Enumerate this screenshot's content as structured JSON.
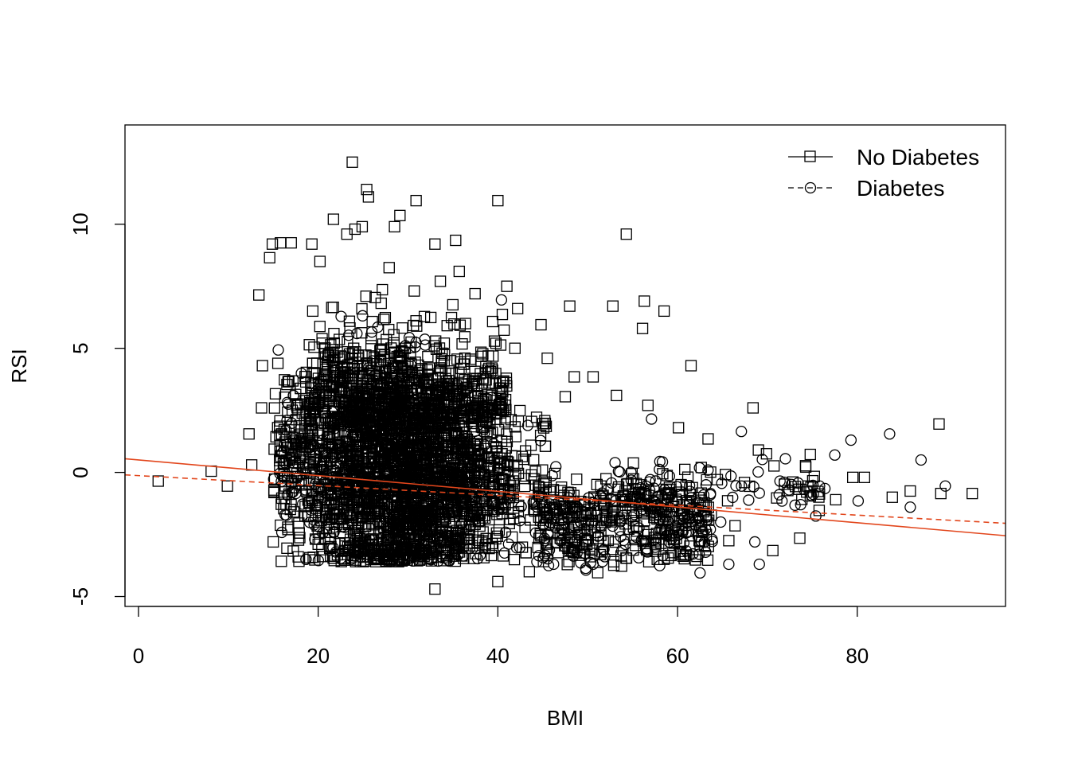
{
  "chart_data": {
    "type": "scatter",
    "title": "",
    "xlabel": "BMI",
    "ylabel": "RSI",
    "xlim": [
      -1.5,
      96.5
    ],
    "ylim": [
      -5.4,
      14.0
    ],
    "x_ticks": [
      0,
      20,
      40,
      60,
      80
    ],
    "y_ticks": [
      -5,
      0,
      5,
      10
    ],
    "grid": false,
    "legend": {
      "position": "top-right",
      "entries": [
        {
          "label": "No Diabetes",
          "marker": "square",
          "line": "solid"
        },
        {
          "label": "Diabetes",
          "marker": "circle",
          "line": "dashed"
        }
      ]
    },
    "series": [
      {
        "name": "No Diabetes",
        "marker": "square",
        "outliers": [
          [
            2.2,
            -0.35
          ],
          [
            8.1,
            0.05
          ],
          [
            9.9,
            -0.55
          ],
          [
            12.3,
            1.55
          ],
          [
            12.6,
            0.3
          ],
          [
            13.4,
            7.15
          ],
          [
            13.8,
            4.3
          ],
          [
            13.7,
            2.6
          ],
          [
            14.6,
            8.65
          ],
          [
            14.9,
            9.2
          ],
          [
            15.8,
            9.25
          ],
          [
            17.0,
            9.25
          ],
          [
            19.3,
            9.2
          ],
          [
            19.4,
            6.5
          ],
          [
            20.2,
            8.5
          ],
          [
            21.7,
            10.2
          ],
          [
            23.2,
            9.6
          ],
          [
            23.8,
            12.5
          ],
          [
            24.1,
            9.8
          ],
          [
            24.9,
            9.9
          ],
          [
            25.4,
            11.4
          ],
          [
            25.6,
            11.1
          ],
          [
            28.5,
            9.9
          ],
          [
            29.1,
            10.35
          ],
          [
            30.9,
            10.95
          ],
          [
            33.0,
            9.2
          ],
          [
            35.3,
            9.35
          ],
          [
            35.7,
            8.1
          ],
          [
            27.9,
            8.25
          ],
          [
            33.6,
            7.7
          ],
          [
            40.0,
            10.95
          ],
          [
            41.0,
            7.5
          ],
          [
            42.2,
            6.6
          ],
          [
            44.8,
            5.95
          ],
          [
            48.0,
            6.7
          ],
          [
            52.8,
            6.7
          ],
          [
            54.3,
            9.6
          ],
          [
            56.3,
            6.9
          ],
          [
            56.1,
            5.8
          ],
          [
            58.5,
            6.5
          ],
          [
            61.5,
            4.3
          ],
          [
            48.5,
            3.85
          ],
          [
            50.6,
            3.85
          ],
          [
            53.2,
            3.1
          ],
          [
            56.7,
            2.7
          ],
          [
            60.1,
            1.8
          ],
          [
            63.4,
            1.35
          ],
          [
            68.4,
            2.6
          ],
          [
            69.0,
            0.9
          ],
          [
            69.9,
            0.75
          ],
          [
            74.5,
            -0.55
          ],
          [
            77.6,
            -1.1
          ],
          [
            79.5,
            -0.2
          ],
          [
            80.8,
            -0.2
          ],
          [
            83.9,
            -1.0
          ],
          [
            85.9,
            -0.75
          ],
          [
            89.1,
            1.95
          ],
          [
            89.3,
            -0.85
          ],
          [
            92.8,
            -0.85
          ],
          [
            73.6,
            -2.65
          ],
          [
            70.6,
            -3.15
          ],
          [
            66.4,
            -2.15
          ],
          [
            65.7,
            -2.75
          ],
          [
            62.4,
            -2.75
          ],
          [
            58.5,
            -3.5
          ],
          [
            60.3,
            -3.3
          ],
          [
            56.8,
            -3.6
          ],
          [
            52.9,
            -3.6
          ],
          [
            40.0,
            -4.4
          ],
          [
            33.0,
            -4.7
          ],
          [
            43.5,
            -4.0
          ],
          [
            47.5,
            3.05
          ],
          [
            45.5,
            4.6
          ],
          [
            41.9,
            5.0
          ],
          [
            15.0,
            -2.8
          ]
        ]
      },
      {
        "name": "Diabetes",
        "marker": "circle",
        "outliers": [
          [
            40.4,
            6.95
          ],
          [
            57.1,
            2.15
          ],
          [
            67.1,
            1.65
          ],
          [
            72.0,
            0.55
          ],
          [
            77.5,
            0.7
          ],
          [
            79.3,
            1.3
          ],
          [
            83.6,
            1.55
          ],
          [
            87.1,
            0.5
          ],
          [
            85.9,
            -1.4
          ],
          [
            89.8,
            -0.55
          ],
          [
            80.1,
            -1.15
          ],
          [
            75.8,
            -0.55
          ],
          [
            73.7,
            -1.3
          ],
          [
            68.6,
            -2.8
          ],
          [
            69.1,
            -3.7
          ],
          [
            65.7,
            -3.7
          ],
          [
            62.5,
            -4.05
          ],
          [
            62.5,
            -2.25
          ],
          [
            59.0,
            -2.0
          ],
          [
            64.8,
            -2.0
          ],
          [
            71.4,
            -0.35
          ],
          [
            76.4,
            -0.65
          ],
          [
            50.6,
            -3.7
          ],
          [
            46.2,
            -3.7
          ]
        ]
      }
    ],
    "regression_lines": [
      {
        "series": "No Diabetes",
        "style": "solid",
        "color": "#e2461c",
        "x": [
          -1.5,
          96.5
        ],
        "y": [
          0.55,
          -2.55
        ]
      },
      {
        "series": "Diabetes",
        "style": "dashed",
        "color": "#e2461c",
        "x": [
          -1.5,
          96.5
        ],
        "y": [
          -0.1,
          -2.05
        ]
      }
    ]
  }
}
